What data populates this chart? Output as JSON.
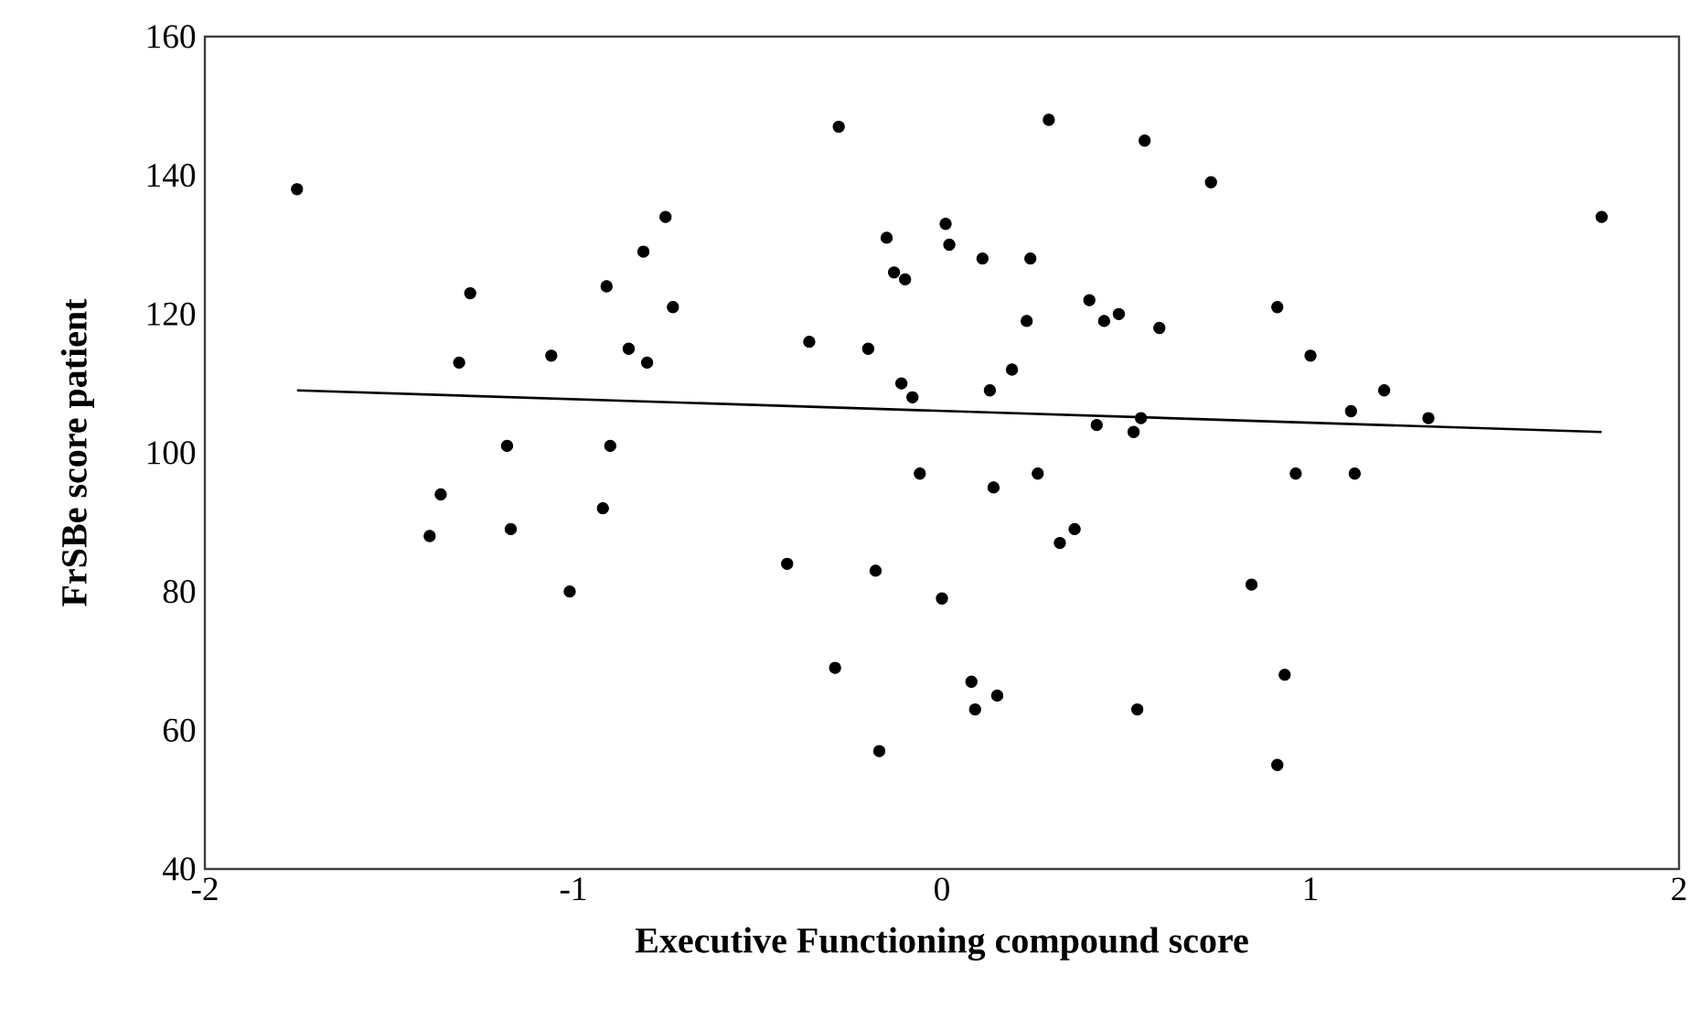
{
  "chart_data": {
    "type": "scatter",
    "xlabel": "Executive Functioning compound score",
    "ylabel": "FrSBe score patient",
    "xlim": [
      -2,
      2
    ],
    "xticks": [
      -2,
      -1,
      0,
      1,
      2
    ],
    "ylim": [
      40,
      160
    ],
    "yticks": [
      40,
      60,
      80,
      100,
      120,
      140,
      160
    ],
    "grid": false,
    "series": [
      {
        "color": "#000000",
        "marker": "circle",
        "x": [
          -1.75,
          -1.39,
          -1.36,
          -1.31,
          -1.28,
          -1.18,
          -1.17,
          -1.06,
          -1.01,
          -0.92,
          -0.91,
          -0.9,
          -0.85,
          -0.81,
          -0.8,
          -0.75,
          -0.73,
          -0.42,
          -0.36,
          -0.29,
          -0.28,
          -0.2,
          -0.18,
          -0.17,
          -0.15,
          -0.13,
          -0.11,
          -0.1,
          -0.08,
          -0.06,
          0.0,
          0.01,
          0.02,
          0.08,
          0.09,
          0.11,
          0.13,
          0.14,
          0.15,
          0.19,
          0.23,
          0.24,
          0.26,
          0.29,
          0.32,
          0.36,
          0.4,
          0.42,
          0.44,
          0.48,
          0.52,
          0.53,
          0.54,
          0.55,
          0.59,
          0.73,
          0.84,
          0.91,
          0.91,
          0.93,
          0.96,
          1.0,
          1.11,
          1.12,
          1.2,
          1.32,
          1.79
        ],
        "values": [
          138,
          88,
          94,
          113,
          123,
          101,
          89,
          114,
          80,
          92,
          124,
          101,
          115,
          129,
          113,
          134,
          121,
          84,
          116,
          69,
          147,
          115,
          83,
          57,
          131,
          126,
          110,
          125,
          108,
          97,
          79,
          133,
          130,
          67,
          63,
          128,
          109,
          95,
          65,
          112,
          119,
          128,
          97,
          148,
          87,
          89,
          122,
          104,
          119,
          120,
          103,
          63,
          105,
          145,
          118,
          139,
          81,
          121,
          55,
          68,
          97,
          114,
          106,
          97,
          109,
          105,
          134
        ]
      },
      {
        "type": "line",
        "color": "#000000",
        "marker": "none",
        "x": [
          -1.75,
          1.79
        ],
        "values": [
          109,
          103
        ]
      }
    ]
  }
}
